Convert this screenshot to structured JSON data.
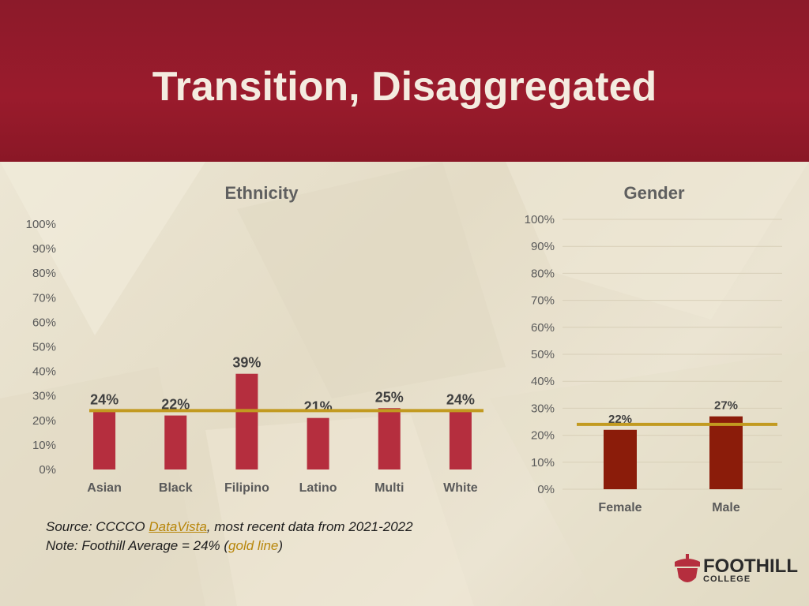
{
  "slide": {
    "title": "Transition, Disaggregated",
    "source_prefix": "Source: CCCCO ",
    "source_link": "DataVista",
    "source_suffix": ", most recent data from 2021-2022",
    "note_prefix": "Note: Foothill Average = 24% (",
    "note_highlight": "gold line",
    "note_suffix": ")",
    "logo_name": "FOOTHILL",
    "logo_sub": "COLLEGE"
  },
  "colors": {
    "ethnicity_bar": "#b52e3e",
    "gender_bar": "#8b1c0a",
    "average_line": "#c29a20",
    "header": "#951b2c"
  },
  "chart_data": [
    {
      "type": "bar",
      "title": "Ethnicity",
      "categories": [
        "Asian",
        "Black",
        "Filipino",
        "Latino",
        "Multi",
        "White"
      ],
      "values": [
        24,
        22,
        39,
        21,
        25,
        24
      ],
      "data_labels": [
        "24%",
        "22%",
        "39%",
        "21%",
        "25%",
        "24%"
      ],
      "yticks": [
        "0%",
        "10%",
        "20%",
        "30%",
        "40%",
        "50%",
        "60%",
        "70%",
        "80%",
        "90%",
        "100%"
      ],
      "ylim": [
        0,
        100
      ],
      "reference_line": 24,
      "grid": false
    },
    {
      "type": "bar",
      "title": "Gender",
      "categories": [
        "Female",
        "Male"
      ],
      "values": [
        22,
        27
      ],
      "data_labels": [
        "22%",
        "27%"
      ],
      "yticks": [
        "0%",
        "10%",
        "20%",
        "30%",
        "40%",
        "50%",
        "60%",
        "70%",
        "80%",
        "90%",
        "100%"
      ],
      "ylim": [
        0,
        100
      ],
      "reference_line": 24,
      "grid": true
    }
  ]
}
